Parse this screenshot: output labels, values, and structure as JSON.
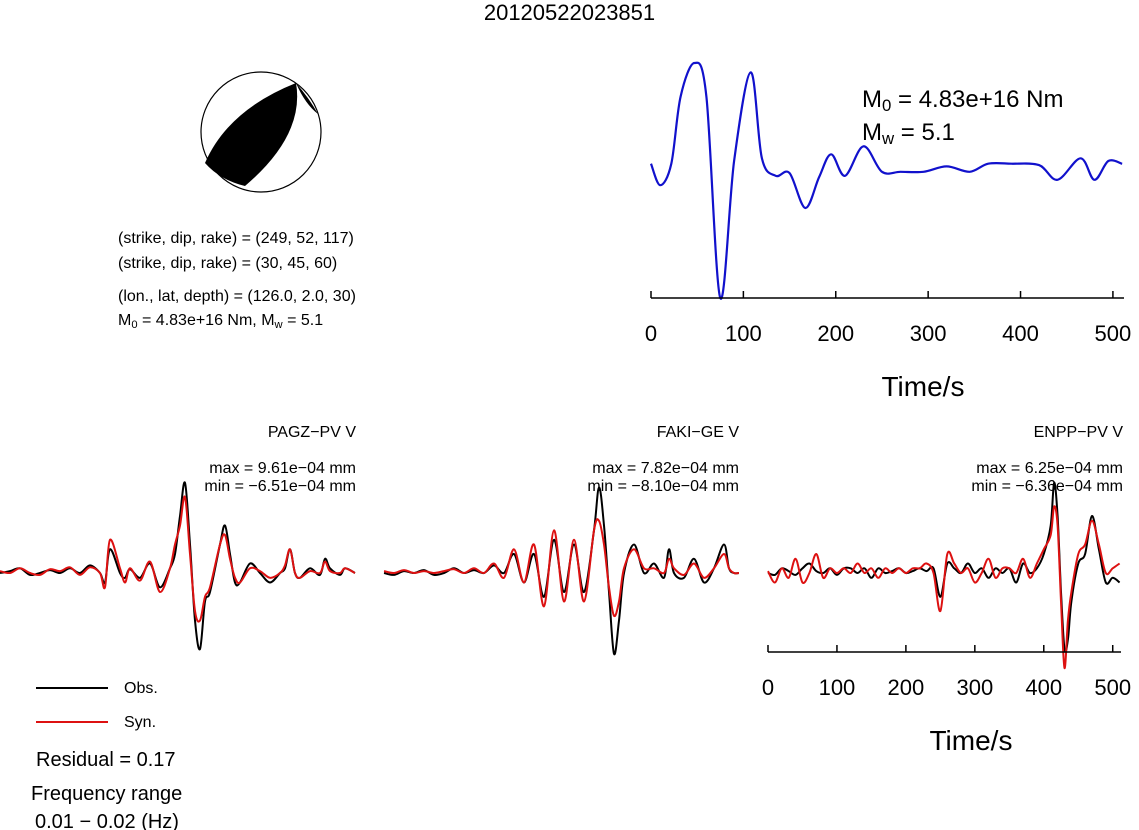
{
  "title": "20120522023851",
  "event_info": {
    "plane1": "(strike, dip, rake) = (249, 52, 117)",
    "plane2": "(strike, dip, rake) = (30, 45, 60)",
    "location": "(lon., lat, depth) = (126.0, 2.0, 30)",
    "m0_prefix": "M",
    "m0_mid": " = 4.83e+16 Nm, M",
    "mw_suffix": " = 5.1"
  },
  "moment": {
    "m0_label": "M",
    "m0_value": " = 4.83e+16 Nm",
    "mw_label": "M",
    "mw_value": " = 5.1"
  },
  "stations": [
    {
      "name": "PAGZ−PV V",
      "max": "max = 9.61e−04 mm",
      "min": "min = −6.51e−04 mm"
    },
    {
      "name": "FAKI−GE V",
      "max": "max = 7.82e−04 mm",
      "min": "min = −8.10e−04 mm"
    },
    {
      "name": "ENPP−PV V",
      "max": "max = 6.25e−04 mm",
      "min": "min = −6.36e−04 mm"
    }
  ],
  "legend": {
    "obs": "Obs.",
    "syn": "Syn."
  },
  "stats": {
    "residual": "Residual = 0.17",
    "freq_label": "Frequency range",
    "freq_value": "0.01 − 0.02 (Hz)"
  },
  "colors": {
    "obs": "#000000",
    "syn": "#dd1111",
    "stf": "#1111cc"
  },
  "chart_data": [
    {
      "type": "line",
      "name_context": "source time function",
      "xlabel": "Time/s",
      "xlim": [
        0,
        512
      ],
      "xticks": [
        0,
        100,
        200,
        300,
        400,
        500
      ],
      "xtick_labels": [
        "0",
        "100",
        "200",
        "300",
        "400",
        "500"
      ],
      "ylim": [
        -1.0,
        0.75
      ],
      "x": [
        0,
        10,
        22,
        32,
        47,
        60,
        75,
        90,
        108,
        120,
        135,
        150,
        167,
        182,
        195,
        210,
        230,
        250,
        270,
        295,
        320,
        345,
        365,
        390,
        420,
        440,
        465,
        480,
        495,
        510
      ],
      "series": [
        {
          "values": [
            0,
            -0.16,
            0,
            0.5,
            0.75,
            0.5,
            -1.0,
            0.02,
            0.68,
            0.04,
            -0.09,
            -0.07,
            -0.33,
            -0.1,
            0.07,
            -0.09,
            0.13,
            -0.06,
            -0.06,
            -0.06,
            -0.02,
            -0.06,
            0.0,
            0.0,
            -0.01,
            -0.12,
            0.04,
            -0.12,
            0.02,
            0.0
          ]
        }
      ]
    },
    {
      "type": "line",
      "name_context": "PAGZ-PV V",
      "ylim": [
        -1,
        1
      ],
      "x": [
        0,
        10,
        20,
        30,
        40,
        50,
        60,
        70,
        80,
        90,
        100,
        105,
        110,
        120,
        125,
        130,
        140,
        150,
        160,
        170,
        175,
        180,
        185,
        190,
        195,
        200,
        205,
        210,
        220,
        225,
        230,
        235,
        240,
        250,
        260,
        270,
        280,
        285,
        290,
        295,
        300,
        310,
        320,
        325,
        330,
        340,
        345,
        355
      ],
      "series": [
        {
          "name": "Obs.",
          "values": [
            0.0,
            0.02,
            0.05,
            -0.02,
            0.0,
            0.03,
            0.0,
            0.05,
            0.0,
            0.08,
            0.0,
            -0.1,
            0.25,
            0.0,
            -0.05,
            0.04,
            -0.05,
            0.1,
            -0.15,
            0.05,
            0.2,
            0.6,
            0.95,
            0.3,
            -0.5,
            -0.8,
            -0.3,
            -0.2,
            0.3,
            0.5,
            0.2,
            -0.1,
            -0.1,
            0.1,
            0.0,
            -0.1,
            0.0,
            0.05,
            0.25,
            0.0,
            -0.05,
            0.05,
            -0.02,
            0.15,
            0.05,
            -0.02,
            0.05,
            0.0
          ]
        },
        {
          "name": "Syn.",
          "values": [
            0.02,
            0.0,
            0.05,
            0.0,
            -0.02,
            0.04,
            0.02,
            0.06,
            -0.02,
            0.06,
            0.0,
            -0.15,
            0.35,
            0.05,
            -0.1,
            0.05,
            -0.08,
            0.12,
            -0.2,
            0.05,
            0.3,
            0.5,
            0.8,
            0.2,
            -0.4,
            -0.5,
            -0.25,
            -0.15,
            0.3,
            0.4,
            0.15,
            -0.05,
            -0.1,
            0.05,
            0.02,
            -0.05,
            0.0,
            0.08,
            0.25,
            0.0,
            -0.05,
            0.02,
            0.0,
            0.12,
            0.02,
            0.0,
            0.05,
            0.0
          ]
        }
      ]
    },
    {
      "type": "line",
      "name_context": "FAKI-GE V",
      "ylim": [
        -1,
        1
      ],
      "x": [
        0,
        10,
        20,
        30,
        40,
        50,
        60,
        70,
        80,
        90,
        100,
        110,
        120,
        130,
        140,
        150,
        160,
        170,
        180,
        190,
        200,
        210,
        215,
        220,
        225,
        230,
        235,
        240,
        250,
        260,
        270,
        280,
        285,
        290,
        300,
        310,
        320,
        330,
        340,
        345,
        350,
        355
      ],
      "series": [
        {
          "name": "Obs.",
          "values": [
            0.0,
            -0.02,
            0.02,
            0.0,
            0.03,
            -0.02,
            0.0,
            0.05,
            0.0,
            0.03,
            0.0,
            0.08,
            0.0,
            0.2,
            -0.1,
            0.2,
            -0.25,
            0.35,
            -0.2,
            0.3,
            -0.2,
            0.45,
            0.9,
            0.5,
            -0.2,
            -0.85,
            -0.5,
            0.0,
            0.3,
            0.0,
            0.1,
            -0.05,
            0.25,
            0.0,
            -0.05,
            0.15,
            -0.1,
            0.05,
            0.3,
            0.05,
            0.0,
            0.0
          ]
        },
        {
          "name": "Syn.",
          "values": [
            0.02,
            0.0,
            0.03,
            0.0,
            0.02,
            0.0,
            0.02,
            0.04,
            0.0,
            0.05,
            0.0,
            0.1,
            -0.05,
            0.25,
            -0.1,
            0.3,
            -0.35,
            0.45,
            -0.3,
            0.35,
            -0.3,
            0.45,
            0.55,
            0.3,
            -0.15,
            -0.45,
            -0.3,
            0.05,
            0.25,
            0.05,
            0.05,
            0.0,
            0.15,
            0.05,
            -0.02,
            0.1,
            -0.05,
            0.05,
            0.2,
            0.05,
            0.0,
            0.0
          ]
        }
      ]
    },
    {
      "type": "line",
      "name_context": "ENPP-PV V",
      "xlabel": "Time/s",
      "xlim": [
        0,
        512
      ],
      "xticks": [
        0,
        100,
        200,
        300,
        400,
        500
      ],
      "xtick_labels": [
        "0",
        "100",
        "200",
        "300",
        "400",
        "500"
      ],
      "ylim": [
        -1,
        1
      ],
      "x": [
        0,
        10,
        20,
        30,
        40,
        50,
        60,
        70,
        80,
        90,
        100,
        110,
        120,
        130,
        140,
        150,
        160,
        170,
        180,
        190,
        200,
        210,
        220,
        230,
        240,
        250,
        260,
        270,
        280,
        290,
        300,
        310,
        320,
        330,
        340,
        350,
        360,
        370,
        380,
        390,
        400,
        410,
        415,
        420,
        425,
        430,
        435,
        440,
        450,
        460,
        470,
        480,
        490,
        500,
        510
      ],
      "series": [
        {
          "name": "Obs.",
          "values": [
            0.0,
            -0.02,
            0.05,
            0.02,
            -0.02,
            0.05,
            0.1,
            0.02,
            0.0,
            0.05,
            -0.02,
            0.05,
            0.05,
            0.0,
            0.05,
            -0.05,
            0.05,
            0.0,
            0.02,
            0.05,
            0.0,
            0.02,
            0.05,
            0.02,
            0.05,
            -0.25,
            0.1,
            0.05,
            0.0,
            0.1,
            0.0,
            0.05,
            -0.05,
            0.05,
            0.0,
            0.05,
            -0.1,
            0.1,
            0.0,
            0.05,
            0.2,
            0.5,
            0.95,
            0.6,
            -0.2,
            -0.8,
            -0.7,
            -0.3,
            0.1,
            0.2,
            0.6,
            0.25,
            -0.1,
            -0.05,
            -0.1
          ]
        },
        {
          "name": "Syn.",
          "values": [
            0.02,
            -0.1,
            0.05,
            -0.05,
            0.15,
            -0.1,
            0.0,
            0.2,
            -0.05,
            0.05,
            0.0,
            0.05,
            0.0,
            0.1,
            0.0,
            0.05,
            -0.05,
            0.05,
            0.0,
            0.05,
            0.0,
            0.05,
            0.05,
            0.1,
            0.0,
            -0.4,
            0.2,
            0.1,
            0.0,
            0.05,
            -0.1,
            0.0,
            0.15,
            -0.05,
            0.05,
            0.05,
            0.0,
            0.15,
            -0.05,
            0.1,
            0.25,
            0.4,
            0.7,
            0.5,
            -0.3,
            -1.0,
            -0.5,
            -0.2,
            0.2,
            0.3,
            0.55,
            0.3,
            0.0,
            0.05,
            0.1
          ]
        }
      ]
    }
  ]
}
